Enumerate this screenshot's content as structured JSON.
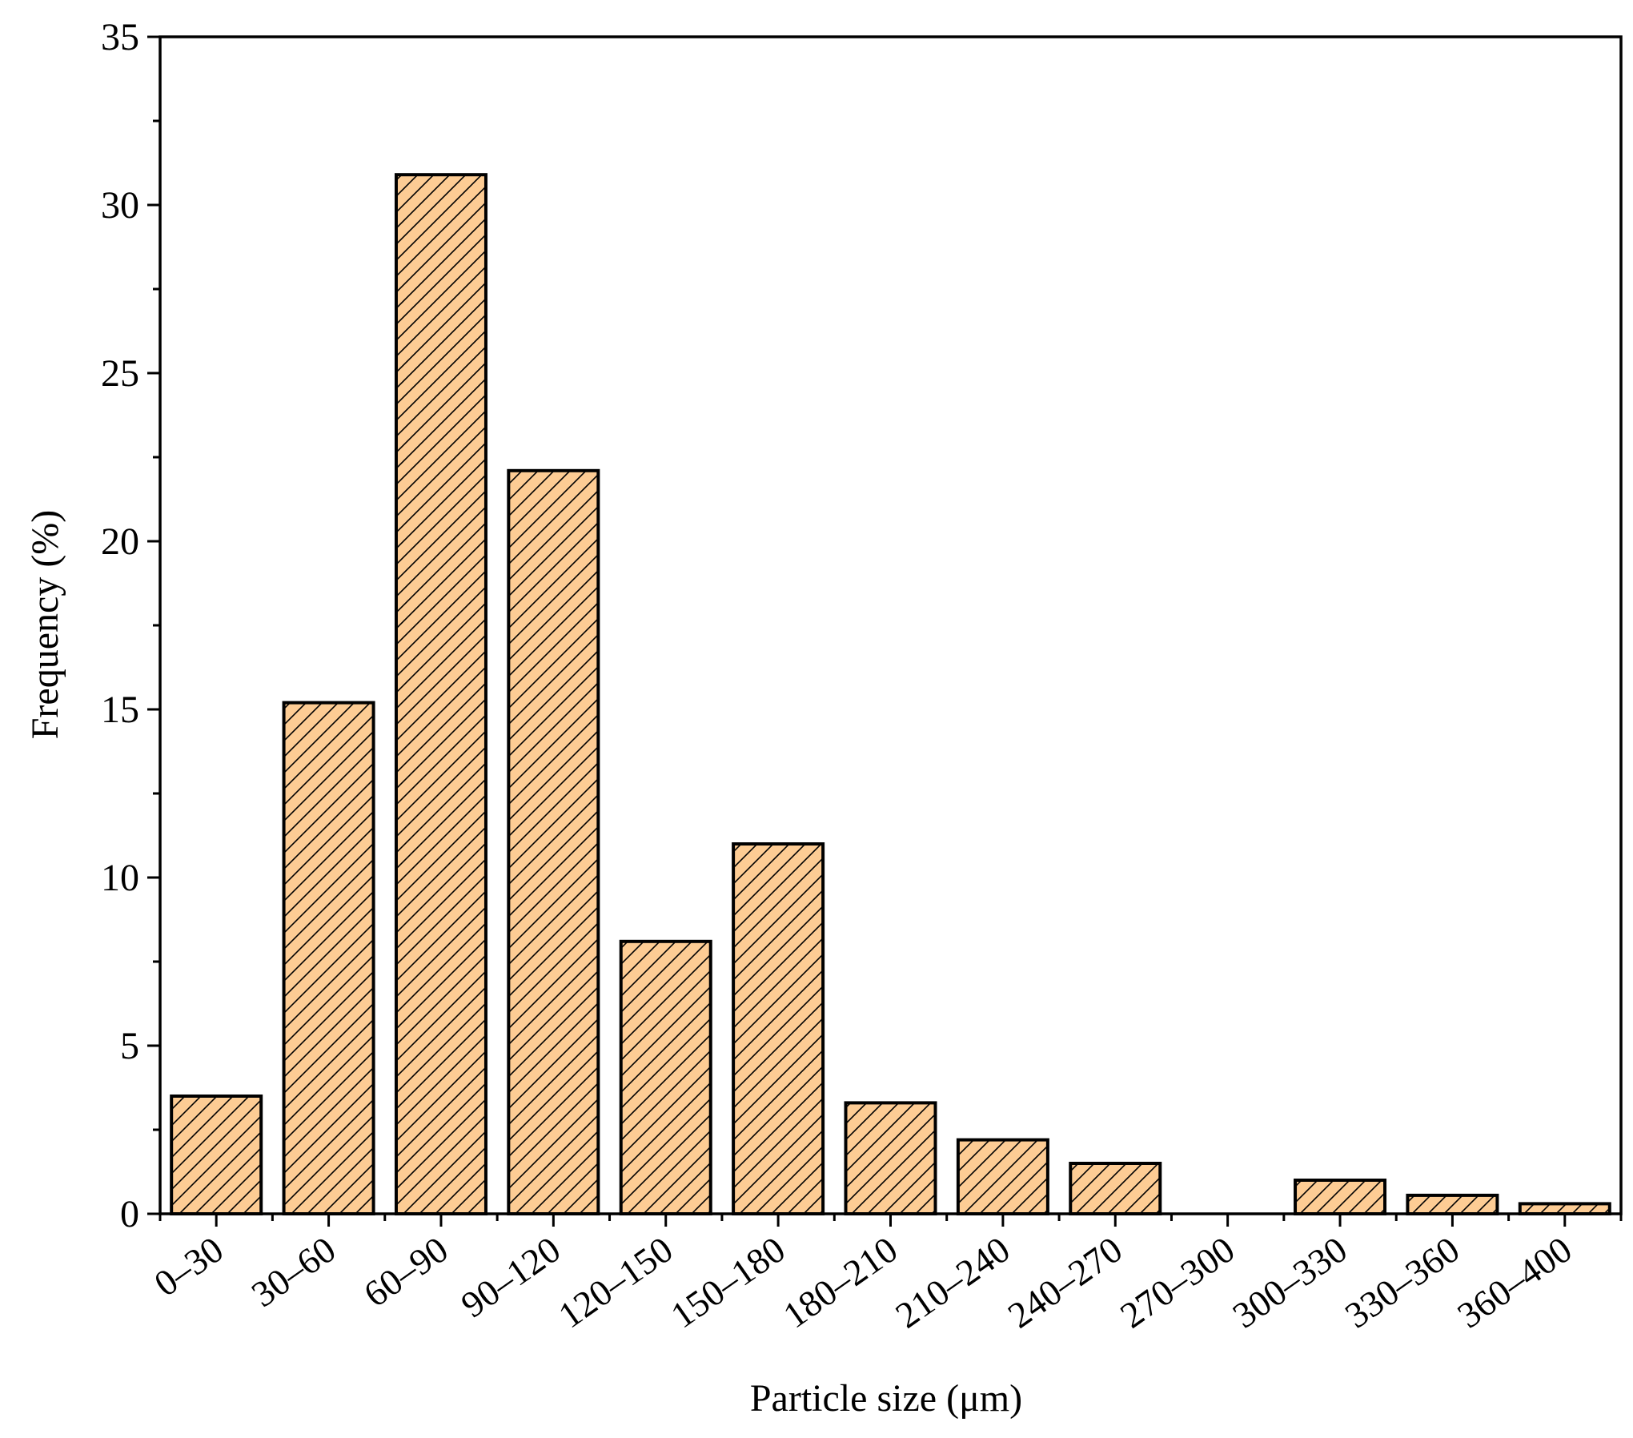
{
  "chart_data": {
    "type": "bar",
    "title": "",
    "xlabel": "Particle size (μm)",
    "ylabel": "Frequency (%)",
    "ylim": [
      0,
      35
    ],
    "yticks": [
      0,
      5,
      10,
      15,
      20,
      25,
      30,
      35
    ],
    "categories": [
      "0–30",
      "30–60",
      "60–90",
      "90–120",
      "120–150",
      "150–180",
      "180–210",
      "210–240",
      "240–270",
      "270–300",
      "300–330",
      "330–360",
      "360–400"
    ],
    "values": [
      3.5,
      15.2,
      30.9,
      22.1,
      8.1,
      11.0,
      3.3,
      2.2,
      1.5,
      0.0,
      1.0,
      0.55,
      0.3
    ],
    "grid": false,
    "legend": "none",
    "bar_fill": "#fdcc94",
    "bar_stroke": "#000000",
    "bar_pattern": "diagonal-hatch"
  }
}
